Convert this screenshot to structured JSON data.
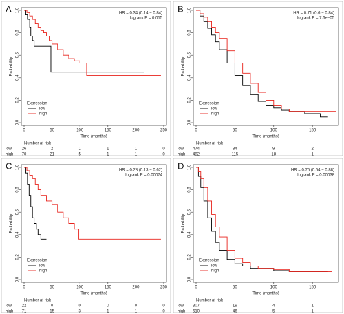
{
  "chart_data": [
    {
      "type": "line",
      "panel": "A",
      "xlabel": "Time (months)",
      "ylabel": "Probability",
      "annotations": [
        "HR = 0.34 (0.14 − 0.84)",
        "logrank P = 0.015"
      ],
      "legend_title": "Expression",
      "legend": "bottom-left",
      "xlim": [
        0,
        250
      ],
      "ylim": [
        0,
        1
      ],
      "xticks": [
        0,
        50,
        100,
        150,
        200,
        250
      ],
      "yticks": [
        {
          "value": 0,
          "label": "0.0"
        },
        0.2,
        0.4,
        0.6,
        0.8,
        {
          "value": 1,
          "label": "1.0"
        }
      ],
      "series": [
        {
          "name": "low",
          "color": "#000000",
          "x": [
            0,
            3,
            6,
            10,
            12,
            15,
            18,
            48,
            215
          ],
          "values": [
            1,
            0.96,
            0.92,
            0.85,
            0.77,
            0.73,
            0.68,
            0.45,
            0.45
          ]
        },
        {
          "name": "high",
          "color": "#e8231c",
          "x": [
            0,
            5,
            10,
            15,
            20,
            25,
            30,
            35,
            40,
            45,
            50,
            60,
            70,
            80,
            90,
            100,
            112,
            245
          ],
          "values": [
            1,
            0.98,
            0.95,
            0.92,
            0.88,
            0.85,
            0.82,
            0.8,
            0.77,
            0.73,
            0.7,
            0.65,
            0.6,
            0.57,
            0.55,
            0.53,
            0.42,
            0.42
          ]
        }
      ],
      "risk_table": {
        "title": "Number at risk",
        "rows": [
          {
            "name": "low",
            "values": [
              26,
              2,
              1,
              1,
              1,
              0
            ]
          },
          {
            "name": "high",
            "values": [
              70,
              21,
              5,
              1,
              1,
              0
            ]
          }
        ]
      }
    },
    {
      "type": "line",
      "panel": "B",
      "xlabel": "Time (months)",
      "ylabel": "Probability",
      "annotations": [
        "HR = 0.71 (0.6 − 0.84)",
        "logrank P = 7.6e−05"
      ],
      "legend_title": "Expression",
      "legend": "bottom-left",
      "xlim": [
        0,
        180
      ],
      "ylim": [
        0,
        1
      ],
      "xticks": [
        0,
        50,
        100,
        150
      ],
      "yticks": [
        {
          "value": 0,
          "label": "0.0"
        },
        0.2,
        0.4,
        0.6,
        0.8,
        {
          "value": 1,
          "label": "1.0"
        }
      ],
      "series": [
        {
          "name": "low",
          "color": "#000000",
          "x": [
            0,
            5,
            10,
            15,
            20,
            25,
            30,
            40,
            50,
            60,
            70,
            80,
            90,
            100,
            110,
            120,
            140,
            160,
            170
          ],
          "values": [
            1,
            0.95,
            0.9,
            0.84,
            0.78,
            0.72,
            0.65,
            0.53,
            0.42,
            0.33,
            0.25,
            0.19,
            0.15,
            0.13,
            0.11,
            0.1,
            0.08,
            0.05,
            0.05
          ]
        },
        {
          "name": "high",
          "color": "#e8231c",
          "x": [
            0,
            5,
            10,
            15,
            20,
            25,
            30,
            40,
            50,
            60,
            70,
            80,
            90,
            100,
            110,
            120,
            140,
            160,
            180
          ],
          "values": [
            1,
            0.97,
            0.94,
            0.9,
            0.85,
            0.8,
            0.75,
            0.64,
            0.53,
            0.44,
            0.35,
            0.27,
            0.2,
            0.15,
            0.12,
            0.1,
            0.1,
            0.1,
            0.1
          ]
        }
      ],
      "risk_table": {
        "title": "Number at risk",
        "rows": [
          {
            "name": "low",
            "values": [
              474,
              84,
              9,
              2
            ]
          },
          {
            "name": "high",
            "values": [
              482,
              115,
              18,
              1
            ]
          }
        ]
      }
    },
    {
      "type": "line",
      "panel": "C",
      "xlabel": "Time (months)",
      "ylabel": "Probability",
      "annotations": [
        "HR = 0.28 (0.13 − 0.62)",
        "logrank P = 0.00074"
      ],
      "legend_title": "Expression",
      "legend": "bottom-left",
      "xlim": [
        0,
        250
      ],
      "ylim": [
        0,
        1
      ],
      "xticks": [
        0,
        50,
        100,
        150,
        200,
        250
      ],
      "yticks": [
        {
          "value": 0,
          "label": "0.0"
        },
        0.2,
        0.4,
        0.6,
        0.8,
        {
          "value": 1,
          "label": "1.0"
        }
      ],
      "series": [
        {
          "name": "low",
          "color": "#000000",
          "x": [
            0,
            3,
            6,
            9,
            12,
            15,
            18,
            22,
            25,
            30,
            40
          ],
          "values": [
            1,
            0.95,
            0.85,
            0.75,
            0.65,
            0.55,
            0.5,
            0.45,
            0.4,
            0.36,
            0.36
          ]
        },
        {
          "name": "high",
          "color": "#e8231c",
          "x": [
            0,
            5,
            10,
            15,
            20,
            25,
            30,
            40,
            50,
            60,
            70,
            80,
            90,
            98,
            245
          ],
          "values": [
            1,
            0.97,
            0.93,
            0.9,
            0.85,
            0.8,
            0.75,
            0.7,
            0.67,
            0.6,
            0.55,
            0.5,
            0.45,
            0.36,
            0.36
          ]
        }
      ],
      "risk_table": {
        "title": "Number at risk",
        "rows": [
          {
            "name": "low",
            "values": [
              22,
              0,
              0,
              0,
              0,
              0
            ]
          },
          {
            "name": "high",
            "values": [
              71,
              15,
              3,
              1,
              1,
              0
            ]
          }
        ]
      }
    },
    {
      "type": "line",
      "panel": "D",
      "xlabel": "Time (months)",
      "ylabel": "Probability",
      "annotations": [
        "HR = 0.75 (0.64 − 0.88)",
        "logrank P = 0.00038"
      ],
      "legend_title": "Expression",
      "legend": "bottom-left",
      "xlim": [
        0,
        180
      ],
      "ylim": [
        0,
        1
      ],
      "xticks": [
        0,
        50,
        100,
        150
      ],
      "yticks": [
        {
          "value": 0,
          "label": "0.0"
        },
        0.2,
        0.4,
        0.6,
        0.8,
        {
          "value": 1,
          "label": "1.0"
        }
      ],
      "series": [
        {
          "name": "low",
          "color": "#000000",
          "x": [
            0,
            3,
            6,
            10,
            15,
            20,
            25,
            30,
            40,
            50,
            60,
            70,
            80,
            100,
            120,
            150,
            170
          ],
          "values": [
            1,
            0.92,
            0.82,
            0.7,
            0.55,
            0.43,
            0.33,
            0.26,
            0.18,
            0.14,
            0.12,
            0.1,
            0.1,
            0.08,
            0.07,
            0.07,
            0.07
          ]
        },
        {
          "name": "high",
          "color": "#e8231c",
          "x": [
            0,
            3,
            6,
            10,
            15,
            20,
            25,
            30,
            40,
            50,
            60,
            70,
            80,
            100,
            120,
            150,
            175
          ],
          "values": [
            1,
            0.96,
            0.9,
            0.82,
            0.7,
            0.58,
            0.47,
            0.38,
            0.26,
            0.19,
            0.15,
            0.12,
            0.1,
            0.09,
            0.07,
            0.07,
            0.07
          ]
        }
      ],
      "risk_table": {
        "title": "Number at risk",
        "rows": [
          {
            "name": "low",
            "values": [
              307,
              19,
              4,
              1
            ]
          },
          {
            "name": "high",
            "values": [
              610,
              46,
              5,
              1
            ]
          }
        ]
      }
    }
  ]
}
